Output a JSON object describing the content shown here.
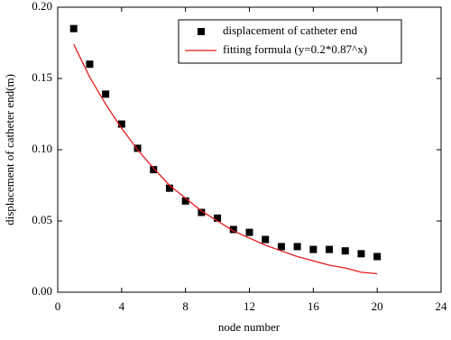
{
  "chart_data": {
    "type": "scatter",
    "x_label": "node number",
    "y_label": "displacement of catheter end(m)",
    "x": [
      1,
      2,
      3,
      4,
      5,
      6,
      7,
      8,
      9,
      10,
      11,
      12,
      13,
      14,
      15,
      16,
      17,
      18,
      19,
      20
    ],
    "series": [
      {
        "name": "displacement of catheter end",
        "color": "#000000",
        "mode": "markers",
        "values": [
          0.185,
          0.16,
          0.139,
          0.118,
          0.101,
          0.086,
          0.073,
          0.064,
          0.056,
          0.052,
          0.044,
          0.042,
          0.037,
          0.032,
          0.032,
          0.03,
          0.03,
          0.029,
          0.027,
          0.025
        ]
      },
      {
        "name": "fitting formula (y=0.2*0.87^x)",
        "color": "#e41a1c",
        "mode": "line",
        "values": [
          0.174,
          0.151,
          0.132,
          0.115,
          0.1,
          0.087,
          0.075,
          0.066,
          0.057,
          0.05,
          0.043,
          0.038,
          0.033,
          0.029,
          0.025,
          0.022,
          0.019,
          0.017,
          0.014,
          0.013
        ]
      }
    ],
    "xlim": [
      0,
      24
    ],
    "xticks": [
      0,
      4,
      8,
      12,
      16,
      20,
      24
    ],
    "ylim": [
      0,
      0.2
    ],
    "yticks": [
      {
        "value": 0,
        "label": "0.00"
      },
      {
        "value": 0.05,
        "label": "0.05"
      },
      {
        "value": 0.1,
        "label": "0.10"
      },
      {
        "value": 0.15,
        "label": "0.15"
      },
      {
        "value": 0.2,
        "label": "0.20"
      }
    ],
    "grid": false,
    "legend": "upper right"
  }
}
